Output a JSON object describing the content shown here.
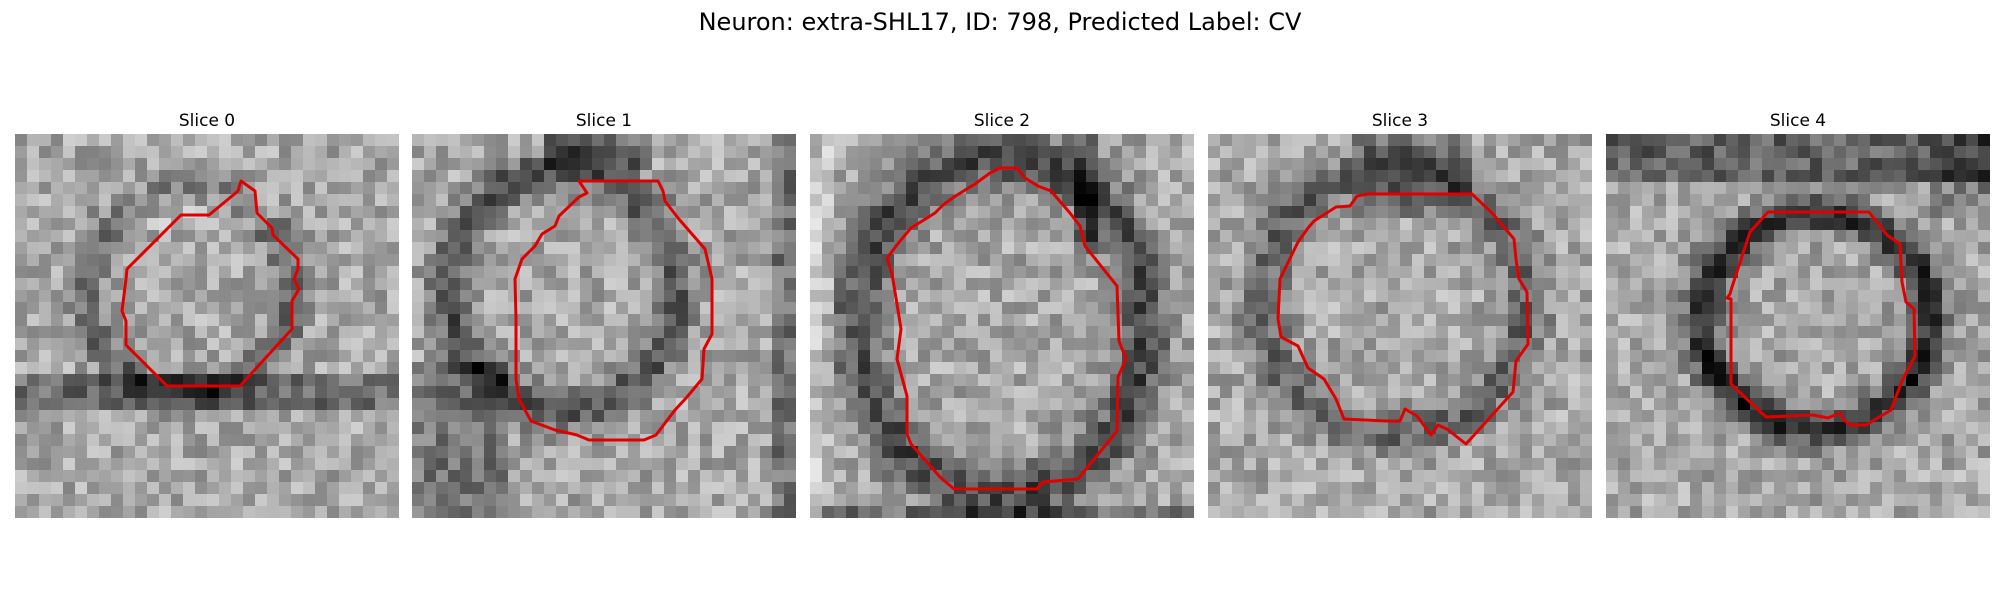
{
  "figure": {
    "title": "Neuron: extra-SHL17, ID: 798, Predicted Label: CV"
  },
  "slices": [
    {
      "title": "Slice 0",
      "contour_color": "#e00000"
    },
    {
      "title": "Slice 1",
      "contour_color": "#e00000"
    },
    {
      "title": "Slice 2",
      "contour_color": "#e00000"
    },
    {
      "title": "Slice 3",
      "contour_color": "#e00000"
    },
    {
      "title": "Slice 4",
      "contour_color": "#e00000"
    }
  ]
}
